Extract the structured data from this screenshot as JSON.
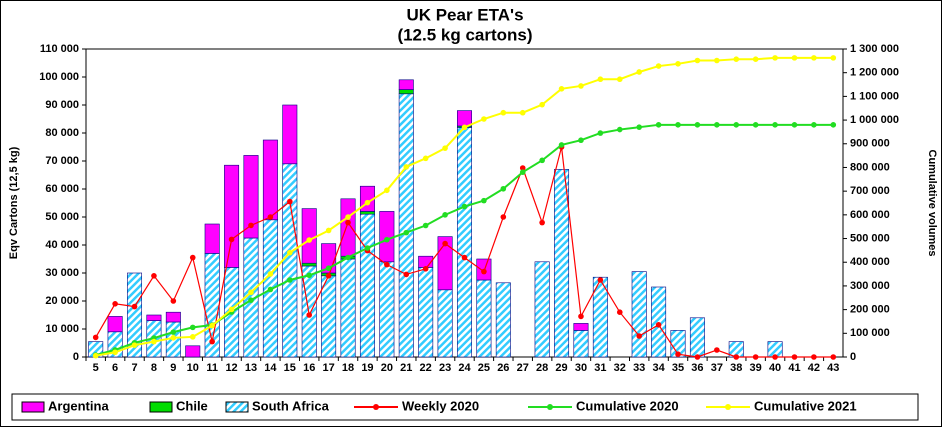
{
  "chart_data": {
    "type": "bar",
    "title": "UK Pear ETA's",
    "subtitle": "(12.5 kg cartons)",
    "y_label": "Eqv Cartons (12,5 kg)",
    "y2_label": "Cumulative volumes",
    "categories": [
      "5",
      "6",
      "7",
      "8",
      "9",
      "10",
      "11",
      "12",
      "13",
      "14",
      "15",
      "16",
      "17",
      "18",
      "19",
      "20",
      "21",
      "22",
      "23",
      "24",
      "25",
      "26",
      "27",
      "28",
      "29",
      "30",
      "31",
      "32",
      "33",
      "34",
      "35",
      "36",
      "37",
      "38",
      "39",
      "40",
      "41",
      "42",
      "43"
    ],
    "ylim": [
      0,
      110000
    ],
    "yticks": [
      0,
      {
        "value": 10000,
        "label": "10 000"
      },
      {
        "value": 20000,
        "label": "20 000"
      },
      {
        "value": 30000,
        "label": "30 000"
      },
      {
        "value": 40000,
        "label": "40 000"
      },
      {
        "value": 50000,
        "label": "50 000"
      },
      {
        "value": 60000,
        "label": "60 000"
      },
      {
        "value": 70000,
        "label": "70 000"
      },
      {
        "value": 80000,
        "label": "80 000"
      },
      {
        "value": 90000,
        "label": "90 000"
      },
      {
        "value": 100000,
        "label": "100 000"
      },
      {
        "value": 110000,
        "label": "110 000"
      }
    ],
    "y2lim": [
      0,
      1300000
    ],
    "y2ticks": [
      0,
      {
        "value": 100000,
        "label": "100 000"
      },
      {
        "value": 200000,
        "label": "200 000"
      },
      {
        "value": 300000,
        "label": "300 000"
      },
      {
        "value": 400000,
        "label": "400 000"
      },
      {
        "value": 500000,
        "label": "500 000"
      },
      {
        "value": 600000,
        "label": "600 000"
      },
      {
        "value": 700000,
        "label": "700 000"
      },
      {
        "value": 800000,
        "label": "800 000"
      },
      {
        "value": 900000,
        "label": "900 000"
      },
      {
        "value": 1000000,
        "label": "1 000 000"
      },
      {
        "value": 1100000,
        "label": "1 100 000"
      },
      {
        "value": 1200000,
        "label": "1 200 000"
      },
      {
        "value": 1300000,
        "label": "1 300 000"
      }
    ],
    "stacked": true,
    "legend": "bottom",
    "series": [
      {
        "name": "Argentina",
        "type": "bar",
        "color": "#ff00ff",
        "values": [
          0,
          5500,
          0,
          2000,
          3500,
          4000,
          10500,
          36500,
          29500,
          28500,
          21000,
          19500,
          10500,
          20500,
          9000,
          18000,
          3500,
          4000,
          19000,
          5500,
          7500,
          0,
          0,
          0,
          0,
          2500,
          0,
          0,
          0,
          0,
          0,
          0,
          0,
          0,
          0,
          0,
          0,
          0,
          0
        ]
      },
      {
        "name": "Chile",
        "type": "bar",
        "color": "#00dd00",
        "values": [
          0,
          0,
          0,
          0,
          0,
          0,
          0,
          0,
          0,
          0,
          0,
          1000,
          1000,
          1000,
          1000,
          0,
          1500,
          0,
          0,
          500,
          0,
          0,
          0,
          0,
          0,
          0,
          0,
          0,
          0,
          0,
          0,
          0,
          0,
          0,
          0,
          0,
          0,
          0,
          0
        ]
      },
      {
        "name": "South Africa",
        "type": "bar",
        "color": "#33ccff",
        "values": [
          5500,
          9000,
          30000,
          13000,
          12500,
          0,
          37000,
          32000,
          42500,
          49000,
          69000,
          32500,
          29000,
          35000,
          51000,
          34000,
          94000,
          32000,
          24000,
          82000,
          27500,
          26500,
          0,
          34000,
          67000,
          9500,
          28500,
          0,
          30500,
          25000,
          9500,
          14000,
          0,
          5500,
          0,
          5500,
          0,
          0,
          0
        ]
      },
      {
        "name": "Weekly 2020",
        "type": "line",
        "color": "#ff0000",
        "values": [
          7000,
          19000,
          18000,
          29000,
          20000,
          35500,
          5500,
          42000,
          47000,
          50000,
          55500,
          15000,
          29000,
          48000,
          38000,
          33000,
          29500,
          31500,
          40500,
          35500,
          30500,
          50000,
          67500,
          48000,
          75000,
          14500,
          27500,
          16000,
          7500,
          11500,
          1000,
          0,
          2500,
          0,
          0,
          0,
          0,
          0,
          0
        ]
      },
      {
        "name": "Cumulative 2020",
        "type": "line",
        "axis": "y2",
        "color": "#22dd22",
        "values": [
          8000,
          30000,
          60000,
          80000,
          105000,
          125000,
          135000,
          190000,
          240000,
          285000,
          325000,
          345000,
          375000,
          420000,
          460000,
          495000,
          525000,
          555000,
          600000,
          635000,
          660000,
          710000,
          780000,
          830000,
          895000,
          915000,
          945000,
          960000,
          970000,
          980000,
          980000,
          980000,
          980000,
          980000,
          980000,
          980000,
          980000,
          980000,
          980000
        ]
      },
      {
        "name": "Cumulative 2021",
        "type": "line",
        "axis": "y2",
        "color": "#ffff00",
        "values": [
          5500,
          20000,
          50000,
          65000,
          81000,
          85000,
          132500,
          201000,
          273000,
          350500,
          440500,
          493500,
          534000,
          590500,
          651500,
          703500,
          802500,
          838500,
          881500,
          969500,
          1004500,
          1031000,
          1031000,
          1065000,
          1132000,
          1144000,
          1172500,
          1172500,
          1203000,
          1228000,
          1237500,
          1251500,
          1251500,
          1257000,
          1257000,
          1262500,
          1262500,
          1262500,
          1262500
        ]
      }
    ]
  }
}
